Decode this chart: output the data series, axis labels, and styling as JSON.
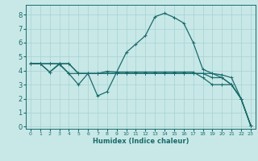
{
  "xlabel": "Humidex (Indice chaleur)",
  "bg_color": "#c8e8e8",
  "grid_color": "#a8d0d0",
  "line_color": "#1a6b6b",
  "xlim": [
    -0.5,
    23.5
  ],
  "ylim": [
    -0.15,
    8.7
  ],
  "xticks": [
    0,
    1,
    2,
    3,
    4,
    5,
    6,
    7,
    8,
    9,
    10,
    11,
    12,
    13,
    14,
    15,
    16,
    17,
    18,
    19,
    20,
    21,
    22,
    23
  ],
  "yticks": [
    0,
    1,
    2,
    3,
    4,
    5,
    6,
    7,
    8
  ],
  "series": [
    [
      4.5,
      4.5,
      3.9,
      4.5,
      3.8,
      3.0,
      3.8,
      2.2,
      2.5,
      3.9,
      5.3,
      5.9,
      6.5,
      7.85,
      8.1,
      7.8,
      7.4,
      6.0,
      4.1,
      3.8,
      3.7,
      3.5,
      2.0,
      0.1
    ],
    [
      4.5,
      4.5,
      3.9,
      4.45,
      3.8,
      3.8,
      3.8,
      3.8,
      3.95,
      3.9,
      3.9,
      3.9,
      3.9,
      3.9,
      3.9,
      3.9,
      3.9,
      3.9,
      3.5,
      3.0,
      3.0,
      3.0,
      2.0,
      0.1
    ],
    [
      4.5,
      4.5,
      4.5,
      4.5,
      4.5,
      3.8,
      3.8,
      3.8,
      3.8,
      3.8,
      3.8,
      3.8,
      3.8,
      3.8,
      3.8,
      3.8,
      3.8,
      3.8,
      3.8,
      3.5,
      3.5,
      3.0,
      2.0,
      0.1
    ],
    [
      4.5,
      4.5,
      4.5,
      4.5,
      4.5,
      3.8,
      3.8,
      3.8,
      3.8,
      3.8,
      3.8,
      3.8,
      3.8,
      3.8,
      3.8,
      3.8,
      3.8,
      3.8,
      3.8,
      3.8,
      3.5,
      3.0,
      2.0,
      0.1
    ]
  ]
}
